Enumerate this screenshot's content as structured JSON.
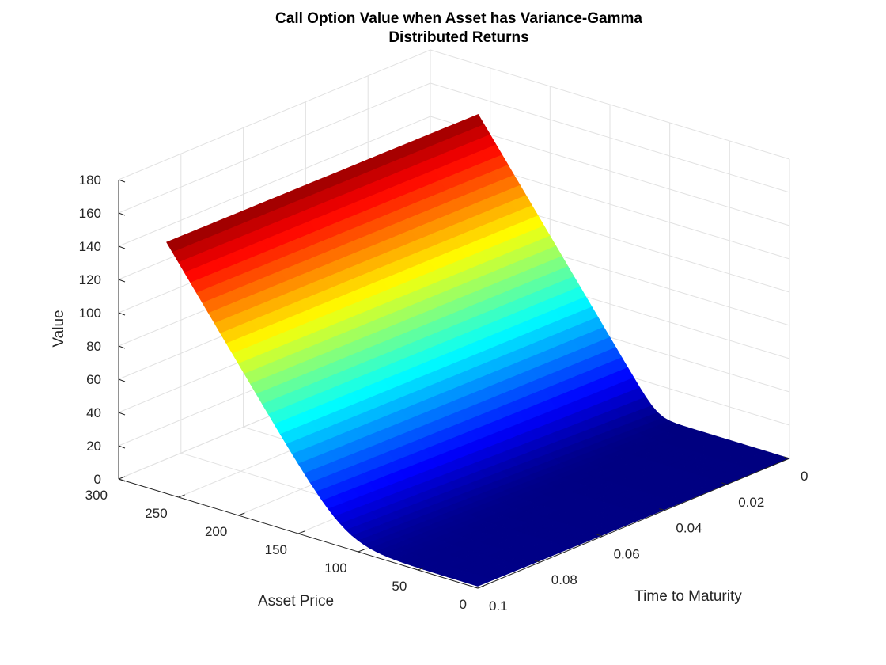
{
  "chart_data": {
    "type": "surface",
    "title": [
      "Call Option Value when Asset has Variance-Gamma",
      "Distributed Returns"
    ],
    "xlabel": "Time to Maturity",
    "ylabel": "Asset Price",
    "zlabel": "Value",
    "xlim": [
      0,
      0.1
    ],
    "ylim": [
      0,
      300
    ],
    "zlim": [
      0,
      180
    ],
    "xticks": [
      "0",
      "0.02",
      "0.04",
      "0.06",
      "0.08",
      "0.1"
    ],
    "yticks": [
      "0",
      "50",
      "100",
      "150",
      "200",
      "250",
      "300"
    ],
    "zticks": [
      "0",
      "20",
      "40",
      "60",
      "80",
      "100",
      "120",
      "140",
      "160",
      "180"
    ],
    "grid": true,
    "colormap": "jet",
    "strike": 110,
    "maturity_range": [
      0,
      0.1
    ],
    "asset_price_range": [
      0,
      260
    ],
    "grid_points": {
      "maturity": 21,
      "asset_price": 53
    },
    "surface_samples": [
      {
        "time_to_maturity": 0.1,
        "asset_price": 0,
        "value": 0
      },
      {
        "time_to_maturity": 0.1,
        "asset_price": 100,
        "value": 4
      },
      {
        "time_to_maturity": 0.1,
        "asset_price": 150,
        "value": 42
      },
      {
        "time_to_maturity": 0.1,
        "asset_price": 200,
        "value": 92
      },
      {
        "time_to_maturity": 0.1,
        "asset_price": 260,
        "value": 152
      },
      {
        "time_to_maturity": 0,
        "asset_price": 0,
        "value": 0
      },
      {
        "time_to_maturity": 0,
        "asset_price": 110,
        "value": 0
      },
      {
        "time_to_maturity": 0,
        "asset_price": 150,
        "value": 40
      },
      {
        "time_to_maturity": 0,
        "asset_price": 200,
        "value": 90
      },
      {
        "time_to_maturity": 0,
        "asset_price": 260,
        "value": 150
      }
    ]
  }
}
